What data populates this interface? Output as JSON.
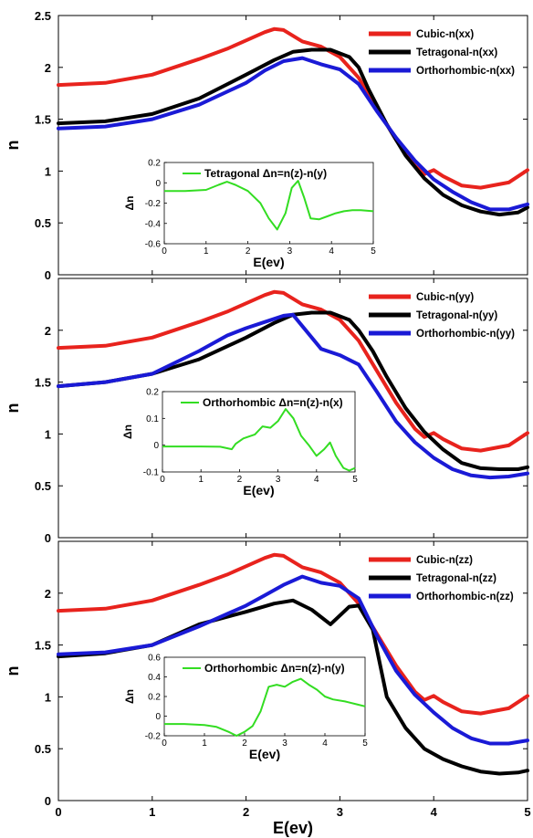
{
  "chart_data": [
    {
      "type": "line",
      "ylabel": "n",
      "xlim": [
        0,
        5
      ],
      "ylim": [
        0,
        2.5
      ],
      "xticks": [
        "0",
        "1",
        "2",
        "3",
        "4",
        "5"
      ],
      "yticks": [
        "0",
        "0.5",
        "1",
        "1.5",
        "2",
        "2.5"
      ],
      "legend_position": "top-right",
      "series": [
        {
          "name": "Cubic-n(xx)",
          "color": "#e8231d",
          "x": [
            0,
            0.5,
            1,
            1.5,
            1.8,
            2,
            2.2,
            2.3,
            2.4,
            2.6,
            2.8,
            3,
            3.2,
            3.4,
            3.6,
            3.8,
            3.9,
            4,
            4.1,
            4.3,
            4.5,
            4.8,
            5
          ],
          "y": [
            1.83,
            1.85,
            1.93,
            2.08,
            2.18,
            2.26,
            2.34,
            2.37,
            2.36,
            2.25,
            2.2,
            2.1,
            1.9,
            1.6,
            1.3,
            1.05,
            0.97,
            1.01,
            0.95,
            0.86,
            0.84,
            0.89,
            1.01
          ]
        },
        {
          "name": "Tetragonal-n(xx)",
          "color": "#000000",
          "x": [
            0,
            0.5,
            1,
            1.5,
            2,
            2.3,
            2.5,
            2.7,
            2.9,
            3.1,
            3.2,
            3.3,
            3.5,
            3.7,
            3.9,
            4.1,
            4.3,
            4.5,
            4.7,
            4.9,
            5
          ],
          "y": [
            1.46,
            1.48,
            1.55,
            1.7,
            1.93,
            2.07,
            2.15,
            2.17,
            2.17,
            2.1,
            2.0,
            1.8,
            1.45,
            1.15,
            0.93,
            0.77,
            0.67,
            0.61,
            0.58,
            0.6,
            0.65
          ]
        },
        {
          "name": "Orthorhombic-n(xx)",
          "color": "#1a1ad6",
          "x": [
            0,
            0.5,
            1,
            1.5,
            2,
            2.2,
            2.4,
            2.6,
            2.8,
            3,
            3.2,
            3.4,
            3.6,
            3.8,
            4,
            4.2,
            4.4,
            4.6,
            4.8,
            5
          ],
          "y": [
            1.41,
            1.43,
            1.5,
            1.64,
            1.85,
            1.97,
            2.06,
            2.09,
            2.03,
            1.98,
            1.84,
            1.57,
            1.32,
            1.1,
            0.92,
            0.8,
            0.7,
            0.63,
            0.63,
            0.68
          ]
        }
      ],
      "inset": {
        "xlabel": "E(ev)",
        "ylabel": "Δn",
        "xlim": [
          0,
          5
        ],
        "ylim": [
          -0.6,
          0.2
        ],
        "xticks": [
          "0",
          "1",
          "2",
          "3",
          "4",
          "5"
        ],
        "yticks": [
          "-0.6",
          "-0.4",
          "-0.2",
          "0",
          "0.2"
        ],
        "series": [
          {
            "name": "Tetragonal Δn=n(z)-n(y)",
            "color": "#33dd22",
            "x": [
              0,
              0.5,
              1,
              1.3,
              1.5,
              1.7,
              2,
              2.3,
              2.5,
              2.7,
              2.9,
              3.05,
              3.2,
              3.35,
              3.5,
              3.7,
              3.9,
              4.1,
              4.3,
              4.5,
              4.7,
              5
            ],
            "y": [
              -0.08,
              -0.08,
              -0.07,
              -0.02,
              0.01,
              -0.02,
              -0.08,
              -0.2,
              -0.35,
              -0.46,
              -0.3,
              -0.05,
              0.02,
              -0.15,
              -0.35,
              -0.36,
              -0.33,
              -0.3,
              -0.28,
              -0.27,
              -0.27,
              -0.28
            ]
          }
        ]
      }
    },
    {
      "type": "line",
      "ylabel": "n",
      "xlim": [
        0,
        5
      ],
      "ylim": [
        0,
        2.5
      ],
      "xticks": [
        "0",
        "1",
        "2",
        "3",
        "4",
        "5"
      ],
      "yticks": [
        "0",
        "0.5",
        "1",
        "1.5",
        "2"
      ],
      "legend_position": "top-right",
      "series": [
        {
          "name": "Cubic-n(yy)",
          "color": "#e8231d",
          "x": [
            0,
            0.5,
            1,
            1.5,
            1.8,
            2,
            2.2,
            2.3,
            2.4,
            2.6,
            2.8,
            3,
            3.2,
            3.4,
            3.6,
            3.8,
            3.9,
            4,
            4.1,
            4.3,
            4.5,
            4.8,
            5
          ],
          "y": [
            1.83,
            1.85,
            1.93,
            2.08,
            2.18,
            2.26,
            2.34,
            2.37,
            2.36,
            2.25,
            2.2,
            2.1,
            1.9,
            1.6,
            1.3,
            1.05,
            0.97,
            1.01,
            0.95,
            0.86,
            0.84,
            0.89,
            1.01
          ]
        },
        {
          "name": "Tetragonal-n(yy)",
          "color": "#000000",
          "x": [
            0,
            0.5,
            1,
            1.5,
            2,
            2.3,
            2.5,
            2.7,
            2.9,
            3.1,
            3.2,
            3.35,
            3.5,
            3.7,
            3.9,
            4.1,
            4.3,
            4.5,
            4.7,
            4.9,
            5
          ],
          "y": [
            1.46,
            1.5,
            1.58,
            1.72,
            1.93,
            2.07,
            2.15,
            2.17,
            2.17,
            2.1,
            2.0,
            1.8,
            1.55,
            1.25,
            1.02,
            0.85,
            0.72,
            0.67,
            0.66,
            0.66,
            0.68
          ]
        },
        {
          "name": "Orthorhombic-n(yy)",
          "color": "#1a1ad6",
          "x": [
            0,
            0.5,
            1,
            1.5,
            1.8,
            2,
            2.2,
            2.4,
            2.5,
            2.6,
            2.8,
            3,
            3.2,
            3.4,
            3.6,
            3.8,
            4,
            4.2,
            4.4,
            4.6,
            4.8,
            5
          ],
          "y": [
            1.46,
            1.5,
            1.58,
            1.8,
            1.95,
            2.02,
            2.08,
            2.14,
            2.15,
            2.04,
            1.82,
            1.76,
            1.67,
            1.4,
            1.12,
            0.92,
            0.77,
            0.66,
            0.6,
            0.58,
            0.59,
            0.62
          ]
        }
      ],
      "inset": {
        "xlabel": "E(ev)",
        "ylabel": "Δn",
        "xlim": [
          0,
          5
        ],
        "ylim": [
          -0.1,
          0.2
        ],
        "xticks": [
          "0",
          "1",
          "2",
          "3",
          "4",
          "5"
        ],
        "yticks": [
          "-0.1",
          "0",
          "0.1",
          "0.2"
        ],
        "series": [
          {
            "name": "Orthorhombic Δn=n(z)-n(x)",
            "color": "#33dd22",
            "x": [
              0,
              0.5,
              1,
              1.5,
              1.8,
              1.9,
              2.1,
              2.4,
              2.6,
              2.8,
              3,
              3.2,
              3.4,
              3.6,
              3.8,
              4,
              4.2,
              4.35,
              4.5,
              4.7,
              4.85,
              5
            ],
            "y": [
              -0.005,
              -0.005,
              -0.005,
              -0.006,
              -0.015,
              0.005,
              0.025,
              0.04,
              0.07,
              0.065,
              0.09,
              0.135,
              0.1,
              0.035,
              0.0,
              -0.04,
              -0.015,
              0.01,
              -0.04,
              -0.085,
              -0.095,
              -0.085
            ]
          }
        ]
      }
    },
    {
      "type": "line",
      "ylabel": "n",
      "xlabel": "E(ev)",
      "xlim": [
        0,
        5
      ],
      "ylim": [
        0,
        2.5
      ],
      "xticks": [
        "0",
        "1",
        "2",
        "3",
        "4",
        "5"
      ],
      "yticks": [
        "0",
        "0.5",
        "1",
        "1.5",
        "2"
      ],
      "legend_position": "top-right",
      "series": [
        {
          "name": "Cubic-n(zz)",
          "color": "#e8231d",
          "x": [
            0,
            0.5,
            1,
            1.5,
            1.8,
            2,
            2.2,
            2.3,
            2.4,
            2.6,
            2.8,
            3,
            3.2,
            3.4,
            3.6,
            3.8,
            3.9,
            4,
            4.1,
            4.3,
            4.5,
            4.8,
            5
          ],
          "y": [
            1.83,
            1.85,
            1.93,
            2.08,
            2.18,
            2.26,
            2.34,
            2.37,
            2.36,
            2.25,
            2.2,
            2.1,
            1.9,
            1.6,
            1.3,
            1.05,
            0.97,
            1.01,
            0.95,
            0.86,
            0.84,
            0.89,
            1.01
          ]
        },
        {
          "name": "Tetragonal-n(zz)",
          "color": "#000000",
          "x": [
            0,
            0.5,
            1,
            1.5,
            2,
            2.3,
            2.5,
            2.7,
            2.9,
            3.1,
            3.2,
            3.35,
            3.5,
            3.7,
            3.9,
            4.1,
            4.3,
            4.5,
            4.7,
            4.9,
            5
          ],
          "y": [
            1.39,
            1.42,
            1.5,
            1.7,
            1.82,
            1.9,
            1.93,
            1.84,
            1.7,
            1.87,
            1.88,
            1.65,
            1.0,
            0.7,
            0.5,
            0.4,
            0.33,
            0.28,
            0.26,
            0.27,
            0.29
          ]
        },
        {
          "name": "Orthorhombic-n(zz)",
          "color": "#1a1ad6",
          "x": [
            0,
            0.5,
            1,
            1.5,
            1.8,
            2,
            2.2,
            2.4,
            2.6,
            2.8,
            3,
            3.2,
            3.4,
            3.6,
            3.8,
            4,
            4.2,
            4.4,
            4.6,
            4.8,
            5
          ],
          "y": [
            1.41,
            1.43,
            1.5,
            1.68,
            1.8,
            1.88,
            1.98,
            2.08,
            2.16,
            2.1,
            2.07,
            1.95,
            1.58,
            1.25,
            1.02,
            0.85,
            0.7,
            0.6,
            0.55,
            0.55,
            0.58
          ]
        }
      ],
      "inset": {
        "xlabel": "E(ev)",
        "ylabel": "Δn",
        "xlim": [
          0,
          5
        ],
        "ylim": [
          -0.2,
          0.6
        ],
        "xticks": [
          "0",
          "1",
          "2",
          "3",
          "4",
          "5"
        ],
        "yticks": [
          "-0.2",
          "0",
          "0.2",
          "0.4",
          "0.6"
        ],
        "series": [
          {
            "name": "Orthorhombic Δn=n(z)-n(y)",
            "color": "#33dd22",
            "x": [
              0,
              0.5,
              1,
              1.3,
              1.6,
              1.8,
              2,
              2.2,
              2.4,
              2.6,
              2.8,
              3,
              3.2,
              3.4,
              3.6,
              3.8,
              4,
              4.2,
              4.5,
              4.8,
              5
            ],
            "y": [
              -0.08,
              -0.08,
              -0.09,
              -0.11,
              -0.16,
              -0.2,
              -0.16,
              -0.1,
              0.05,
              0.3,
              0.32,
              0.3,
              0.35,
              0.38,
              0.32,
              0.27,
              0.2,
              0.17,
              0.15,
              0.12,
              0.1
            ]
          }
        ]
      }
    }
  ]
}
